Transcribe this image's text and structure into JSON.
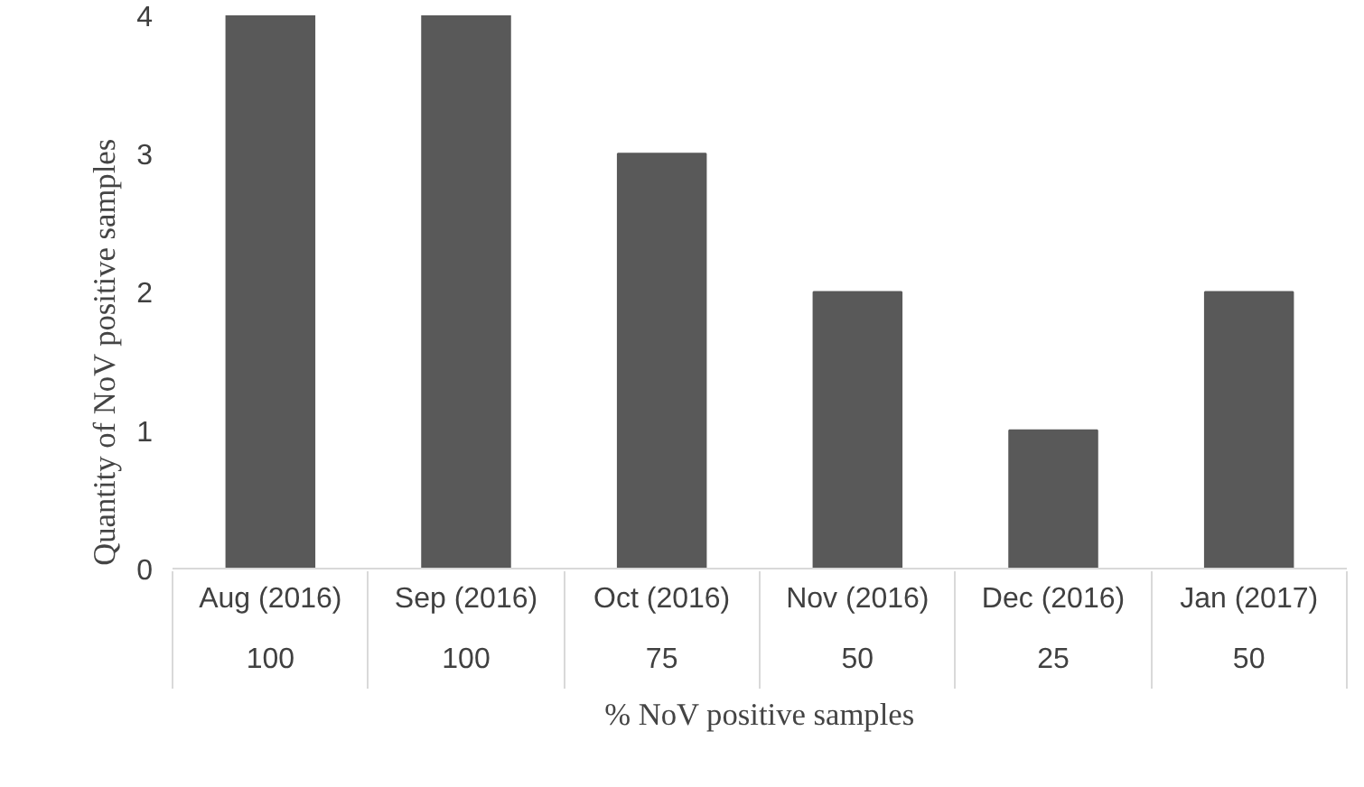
{
  "chart_data": {
    "type": "bar",
    "categories": [
      "Aug (2016)",
      "Sep (2016)",
      "Oct (2016)",
      "Nov (2016)",
      "Dec (2016)",
      "Jan (2017)"
    ],
    "values": [
      4,
      4,
      3,
      2,
      1,
      2
    ],
    "color": "#595959",
    "ylim": [
      0,
      4
    ],
    "yticks": [
      0,
      1,
      2,
      3,
      4
    ],
    "ylabel": "Quantity of NoV positive samples",
    "xlabel": "% NoV positive samples",
    "annotations": [
      "100",
      "100",
      "75",
      "50",
      "25",
      "50"
    ],
    "grid": false
  }
}
